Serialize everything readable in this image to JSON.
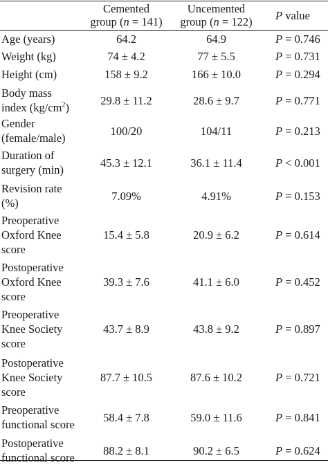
{
  "header": {
    "col1_line1": "Cemented",
    "col1_line2_pre": "group (",
    "col1_line2_var": "n",
    "col1_line2_post": " = 141)",
    "col2_line1": "Uncemented",
    "col2_line2_pre": "group (",
    "col2_line2_var": "n",
    "col2_line2_post": " = 122)",
    "col3_var": "P",
    "col3_text": " value"
  },
  "rows": [
    {
      "label": [
        "Age (years)"
      ],
      "cemented": "64.2",
      "uncemented": "64.9",
      "p_op": " = ",
      "p_val": "0.746"
    },
    {
      "label": [
        "Weight (kg)"
      ],
      "cemented": "74 ± 4.2",
      "uncemented": "77 ± 5.5",
      "p_op": " = ",
      "p_val": "0.731"
    },
    {
      "label": [
        "Height (cm)"
      ],
      "cemented": "158 ± 9.2",
      "uncemented": "166 ± 10.0",
      "p_op": " = ",
      "p_val": "0.294"
    },
    {
      "label": [
        "Body mass",
        "index (kg/cm"
      ],
      "label_sup": "2",
      "label_tail": ")",
      "cemented": "29.8 ± 11.2",
      "uncemented": "28.6 ± 9.7",
      "p_op": " = ",
      "p_val": "0.771"
    },
    {
      "label": [
        "Gender",
        "(female/male)"
      ],
      "cemented": "100/20",
      "uncemented": "104/11",
      "p_op": " = ",
      "p_val": "0.213"
    },
    {
      "label": [
        "Duration of",
        "surgery (min)"
      ],
      "cemented": "45.3 ± 12.1",
      "uncemented": "36.1 ± 11.4",
      "p_op": " < ",
      "p_val": "0.001"
    },
    {
      "label": [
        "Revision rate",
        "(%)"
      ],
      "cemented": "7.09%",
      "uncemented": "4.91%",
      "p_op": " = ",
      "p_val": "0.153"
    },
    {
      "label": [
        "Preoperative",
        "Oxford Knee",
        "score"
      ],
      "cemented": "15.4 ± 5.8",
      "uncemented": "20.9 ± 6.2",
      "p_op": " = ",
      "p_val": "0.614"
    },
    {
      "label": [
        "Postoperative",
        "Oxford Knee",
        "score"
      ],
      "cemented": "39.3 ± 7.6",
      "uncemented": "41.1 ± 6.0",
      "p_op": " = ",
      "p_val": "0.452"
    },
    {
      "label": [
        "Preoperative",
        "Knee Society",
        "score"
      ],
      "cemented": "43.7 ± 8.9",
      "uncemented": "43.8 ± 9.2",
      "p_op": " = ",
      "p_val": "0.897"
    },
    {
      "label": [
        "Postoperative",
        "Knee Society",
        "score"
      ],
      "cemented": "87.7 ± 10.5",
      "uncemented": "87.6 ± 10.2",
      "p_op": " = ",
      "p_val": "0.721"
    },
    {
      "label": [
        "Preoperative",
        "functional score"
      ],
      "cemented": "58.4 ± 7.8",
      "uncemented": "59.0 ± 11.6",
      "p_op": " = ",
      "p_val": "0.841"
    },
    {
      "label": [
        "Postoperative",
        "functional score"
      ],
      "cemented": "88.2 ± 8.1",
      "uncemented": "90.2 ± 6.5",
      "p_op": " = ",
      "p_val": "0.624"
    }
  ]
}
